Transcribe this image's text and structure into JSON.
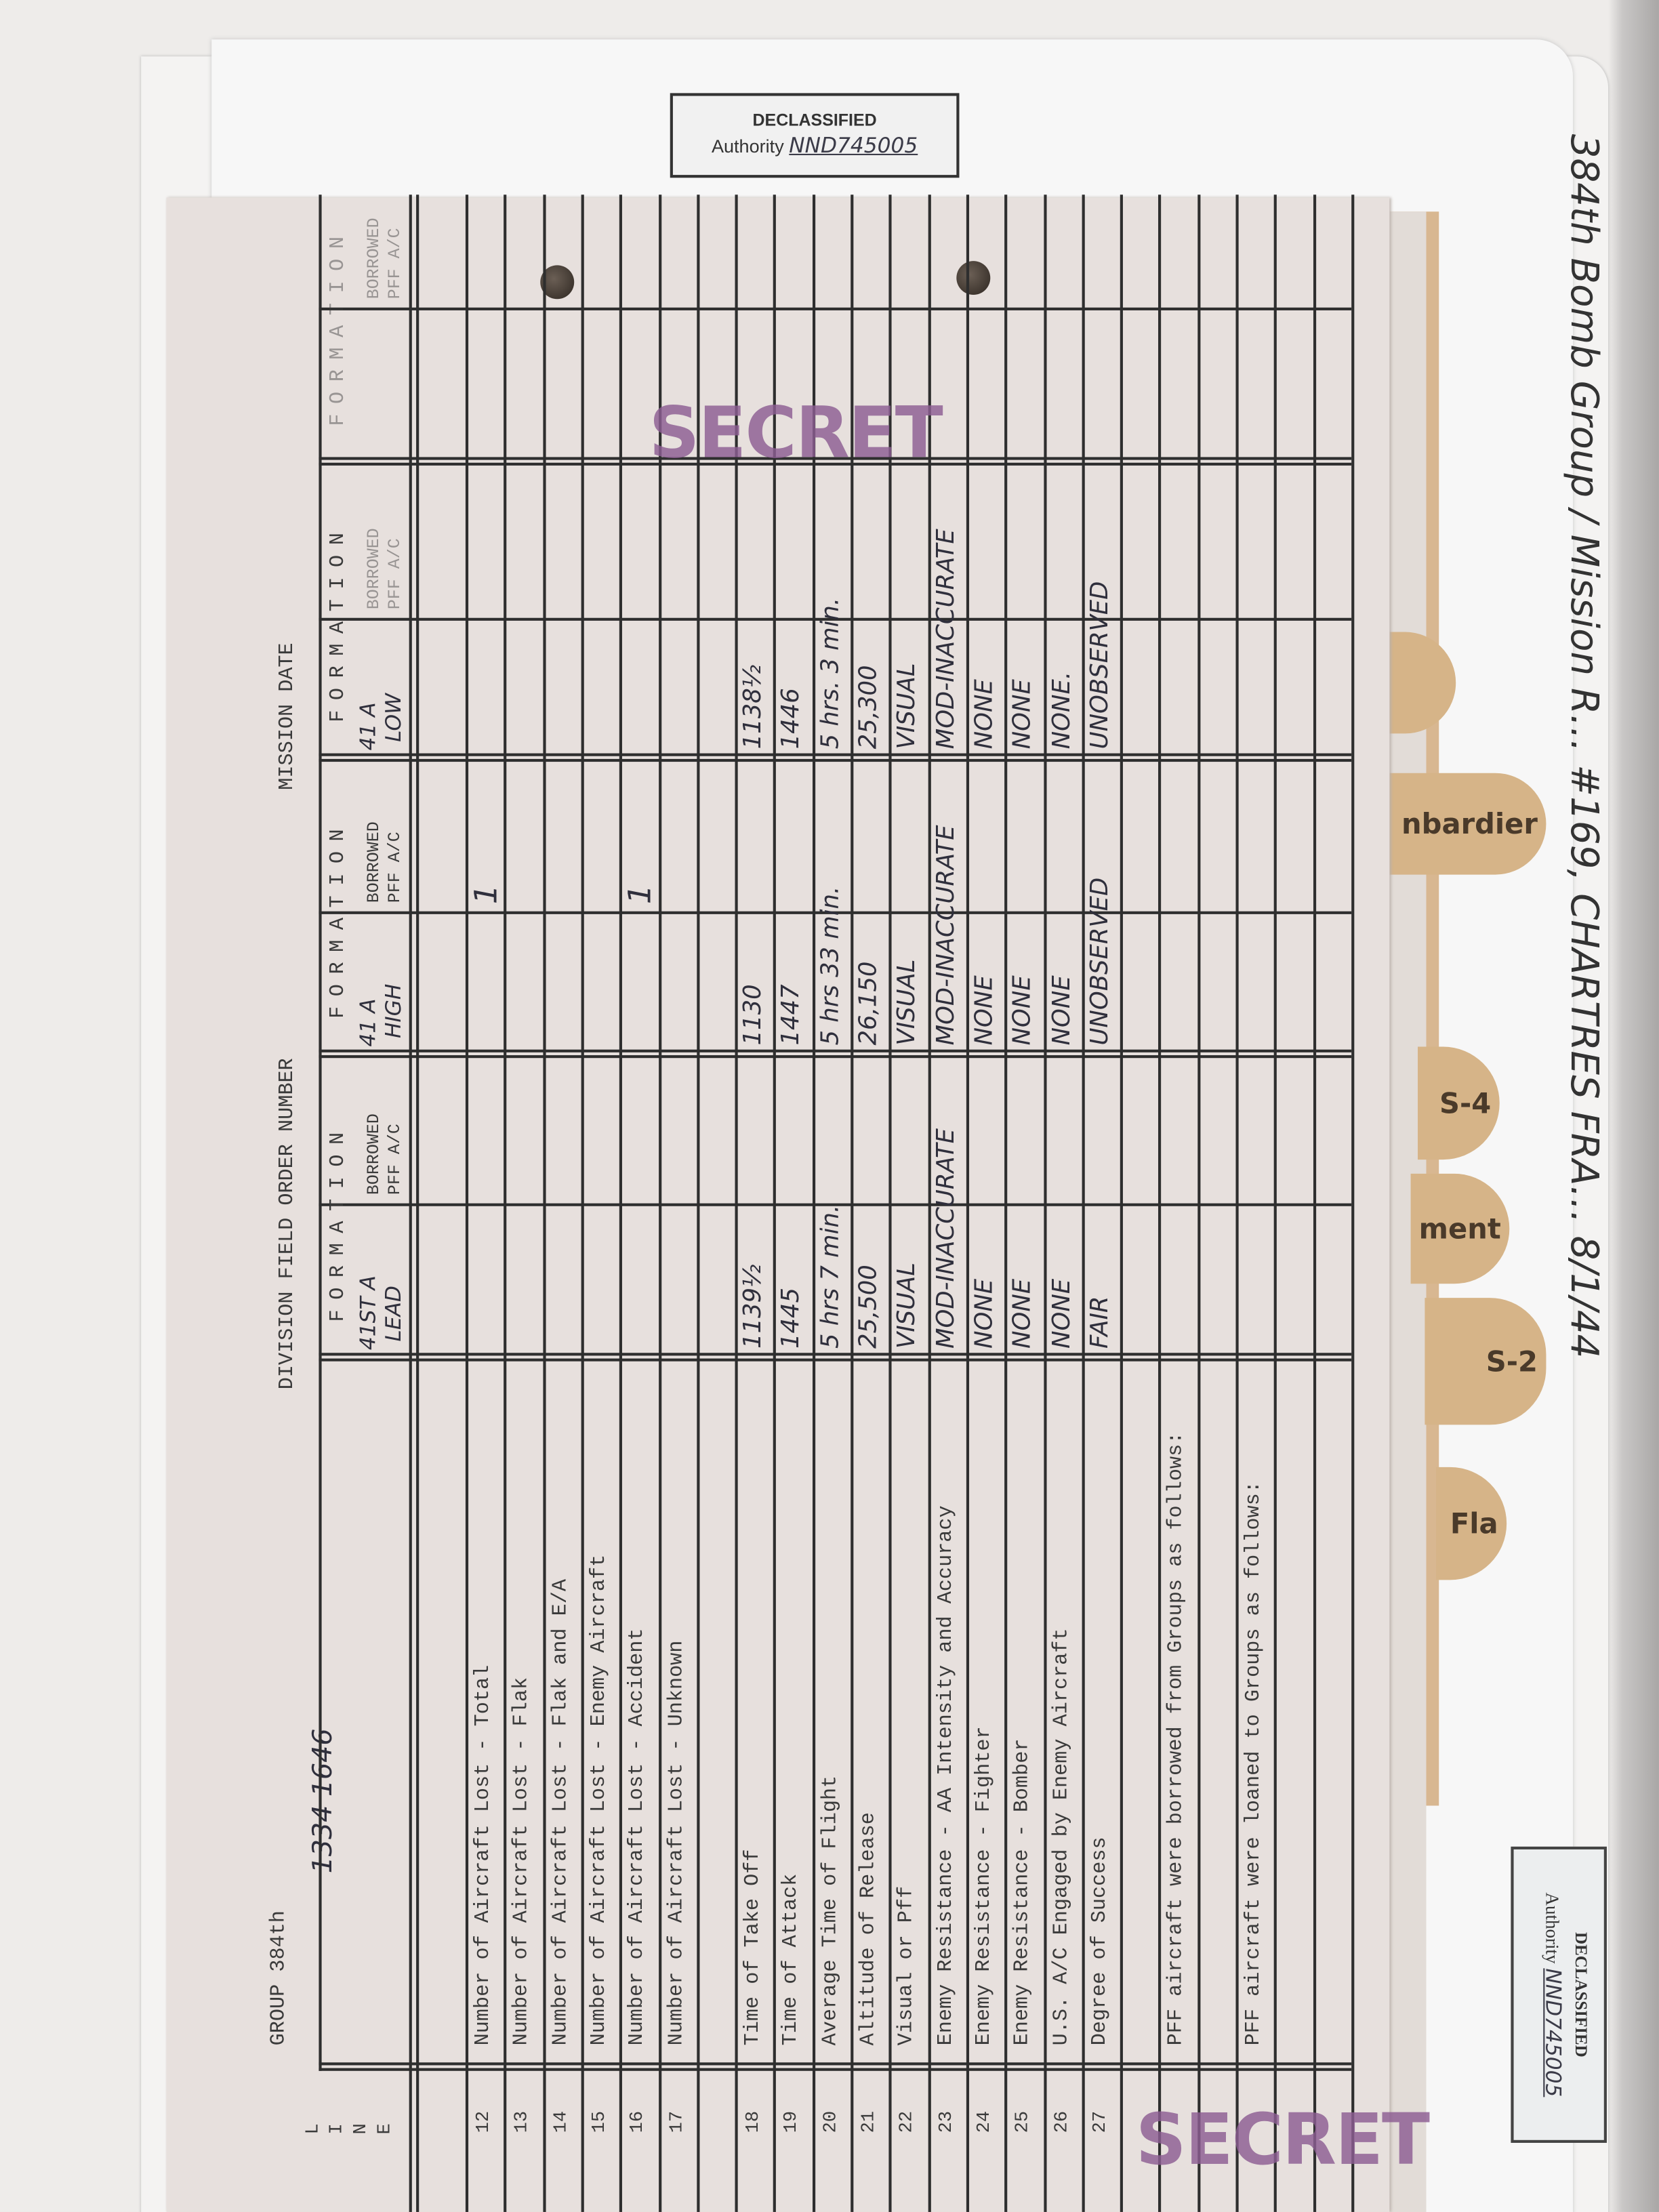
{
  "declassified_stamp_top": {
    "title": "DECLASSIFIED",
    "authority_label": "Authority",
    "authority_value": "NND745005"
  },
  "declassified_stamp_side": {
    "title": "DECLASSIFIED",
    "authority_label": "Authority",
    "authority_value": "NND745005"
  },
  "folder_note": "384th Bomb Group / Mission R… #169, CHARTRES FRA… 8/1/44",
  "tabs": [
    {
      "label": ""
    },
    {
      "label": "nbardier"
    },
    {
      "label": "S-4"
    },
    {
      "label": "ment"
    },
    {
      "label": "S-2"
    },
    {
      "label": "Fla"
    }
  ],
  "stamps": {
    "secret_top": "SECRET",
    "secret_bottom": "SECRET"
  },
  "form": {
    "group_label": "GROUP 384th",
    "handwritten_note": "1334  1646",
    "division_field_order": "DIVISION FIELD ORDER NUMBER",
    "mission_date": "MISSION DATE",
    "line_header": [
      "L",
      "I",
      "N",
      "E"
    ],
    "columns": [
      {
        "header": "FORMATION",
        "sub": "41ST A",
        "sub2": "LEAD",
        "borrowed": "BORROWED",
        "borrowed2": "PFF A/C"
      },
      {
        "header": "FORMATION",
        "sub": "41 A",
        "sub2": "HIGH",
        "borrowed": "BORROWED",
        "borrowed2": "PFF A/C"
      },
      {
        "header": "FORMATION",
        "sub": "41 A",
        "sub2": "LOW",
        "borrowed": "BORROWED",
        "borrowed2": "PFF A/C"
      },
      {
        "header": "FORMATION",
        "sub": "",
        "sub2": "",
        "borrowed": "BORROWED",
        "borrowed2": "PFF A/C"
      }
    ],
    "rows": [
      {
        "num": "12",
        "label": "Number of Aircraft Lost - Total",
        "lead": "",
        "high": "1",
        "low": ""
      },
      {
        "num": "13",
        "label": "Number of Aircraft Lost - Flak",
        "lead": "",
        "high": "",
        "low": ""
      },
      {
        "num": "14",
        "label": "Number of Aircraft Lost - Flak and E/A",
        "lead": "",
        "high": "",
        "low": ""
      },
      {
        "num": "15",
        "label": "Number of Aircraft Lost - Enemy Aircraft",
        "lead": "",
        "high": "",
        "low": ""
      },
      {
        "num": "16",
        "label": "Number of Aircraft Lost - Accident",
        "lead": "",
        "high": "1",
        "low": ""
      },
      {
        "num": "17",
        "label": "Number of Aircraft Lost - Unknown",
        "lead": "",
        "high": "",
        "low": ""
      },
      {
        "num": "",
        "label": "",
        "lead": "",
        "high": "",
        "low": ""
      },
      {
        "num": "18",
        "label": "Time of Take Off",
        "lead": "1139½",
        "high": "1130",
        "low": "1138½"
      },
      {
        "num": "19",
        "label": "Time of Attack",
        "lead": "1445",
        "high": "1447",
        "low": "1446"
      },
      {
        "num": "20",
        "label": "Average Time of Flight",
        "lead": "5 hrs 7 min.",
        "high": "5 hrs 33 min.",
        "low": "5 hrs. 3 min."
      },
      {
        "num": "21",
        "label": "Altitude of Release",
        "lead": "25,500",
        "high": "26,150",
        "low": "25,300"
      },
      {
        "num": "22",
        "label": "Visual or Pff",
        "lead": "VISUAL",
        "high": "VISUAL",
        "low": "VISUAL"
      },
      {
        "num": "23",
        "label": "Enemy Resistance - AA Intensity and Accuracy",
        "lead": "MOD-INACCURATE",
        "high": "MOD-INACCURATE",
        "low": "MOD-INACCURATE"
      },
      {
        "num": "24",
        "label": "Enemy Resistance - Fighter",
        "lead": "NONE",
        "high": "NONE",
        "low": "NONE"
      },
      {
        "num": "25",
        "label": "Enemy Resistance - Bomber",
        "lead": "NONE",
        "high": "NONE",
        "low": "NONE"
      },
      {
        "num": "26",
        "label": "U.S. A/C Engaged by Enemy Aircraft",
        "lead": "NONE",
        "high": "NONE",
        "low": "NONE."
      },
      {
        "num": "27",
        "label": "Degree of Success",
        "lead": "FAIR",
        "high": "UNOBSERVED",
        "low": "UNOBSERVED"
      }
    ],
    "pff_borrowed": "PFF aircraft were borrowed from Groups as follows:",
    "pff_loaned": "PFF aircraft were loaned to Groups as follows:"
  }
}
